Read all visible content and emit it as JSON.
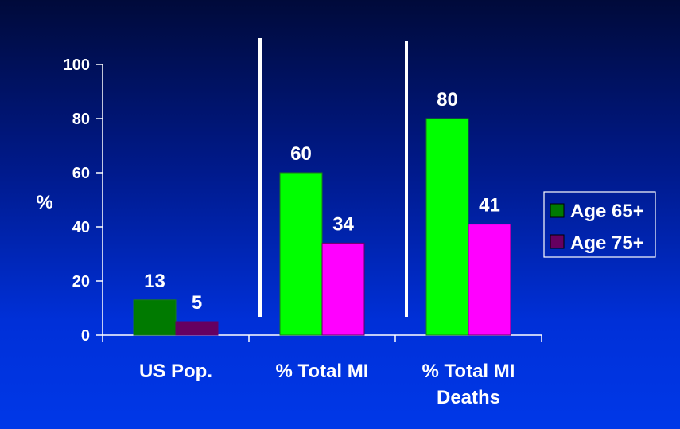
{
  "chart_data": {
    "type": "bar",
    "categories": [
      [
        "US Pop."
      ],
      [
        "% Total MI"
      ],
      [
        "% Total MI",
        "Deaths"
      ]
    ],
    "series": [
      {
        "name": "Age 65+",
        "values": [
          13,
          60,
          80
        ],
        "color": "#00ff00",
        "edge_color": "#1a7a1a"
      },
      {
        "name": "Age 75+",
        "values": [
          5,
          34,
          41
        ],
        "color": "#ff00ff",
        "edge_color": "#660066"
      }
    ],
    "first_group_colors": [
      "#007a00",
      "#660060"
    ],
    "legend_swatch_colors": [
      "#007a00",
      "#660060"
    ],
    "ylabel": "%",
    "ylim": [
      0,
      100
    ],
    "yticks": [
      0,
      20,
      40,
      60,
      80,
      100
    ],
    "grid": false,
    "legend_position": "right",
    "group_separators": true
  }
}
